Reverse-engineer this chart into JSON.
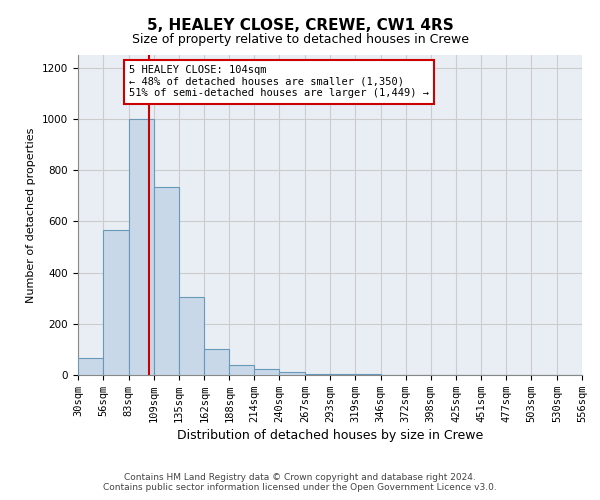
{
  "title": "5, HEALEY CLOSE, CREWE, CW1 4RS",
  "subtitle": "Size of property relative to detached houses in Crewe",
  "xlabel": "Distribution of detached houses by size in Crewe",
  "ylabel": "Number of detached properties",
  "bar_color": "#c8d8e8",
  "bar_edge_color": "#6899b8",
  "bin_edges": [
    30,
    56,
    83,
    109,
    135,
    162,
    188,
    214,
    240,
    267,
    293,
    319,
    346,
    372,
    398,
    425,
    451,
    477,
    503,
    530,
    556
  ],
  "bar_values": [
    65,
    565,
    1000,
    735,
    305,
    100,
    40,
    25,
    10,
    5,
    3,
    2,
    1,
    1,
    1,
    0,
    0,
    0,
    0,
    0
  ],
  "property_size": 104,
  "red_line_color": "#cc0000",
  "annotation_line1": "5 HEALEY CLOSE: 104sqm",
  "annotation_line2": "← 48% of detached houses are smaller (1,350)",
  "annotation_line3": "51% of semi-detached houses are larger (1,449) →",
  "annotation_box_color": "#ffffff",
  "annotation_box_edge_color": "#cc0000",
  "ylim": [
    0,
    1250
  ],
  "yticks": [
    0,
    200,
    400,
    600,
    800,
    1000,
    1200
  ],
  "footer_line1": "Contains HM Land Registry data © Crown copyright and database right 2024.",
  "footer_line2": "Contains public sector information licensed under the Open Government Licence v3.0.",
  "background_color": "#ffffff",
  "grid_color": "#cccccc",
  "title_fontsize": 11,
  "subtitle_fontsize": 9,
  "ylabel_fontsize": 8,
  "xlabel_fontsize": 9,
  "tick_fontsize": 7.5,
  "footer_fontsize": 6.5
}
